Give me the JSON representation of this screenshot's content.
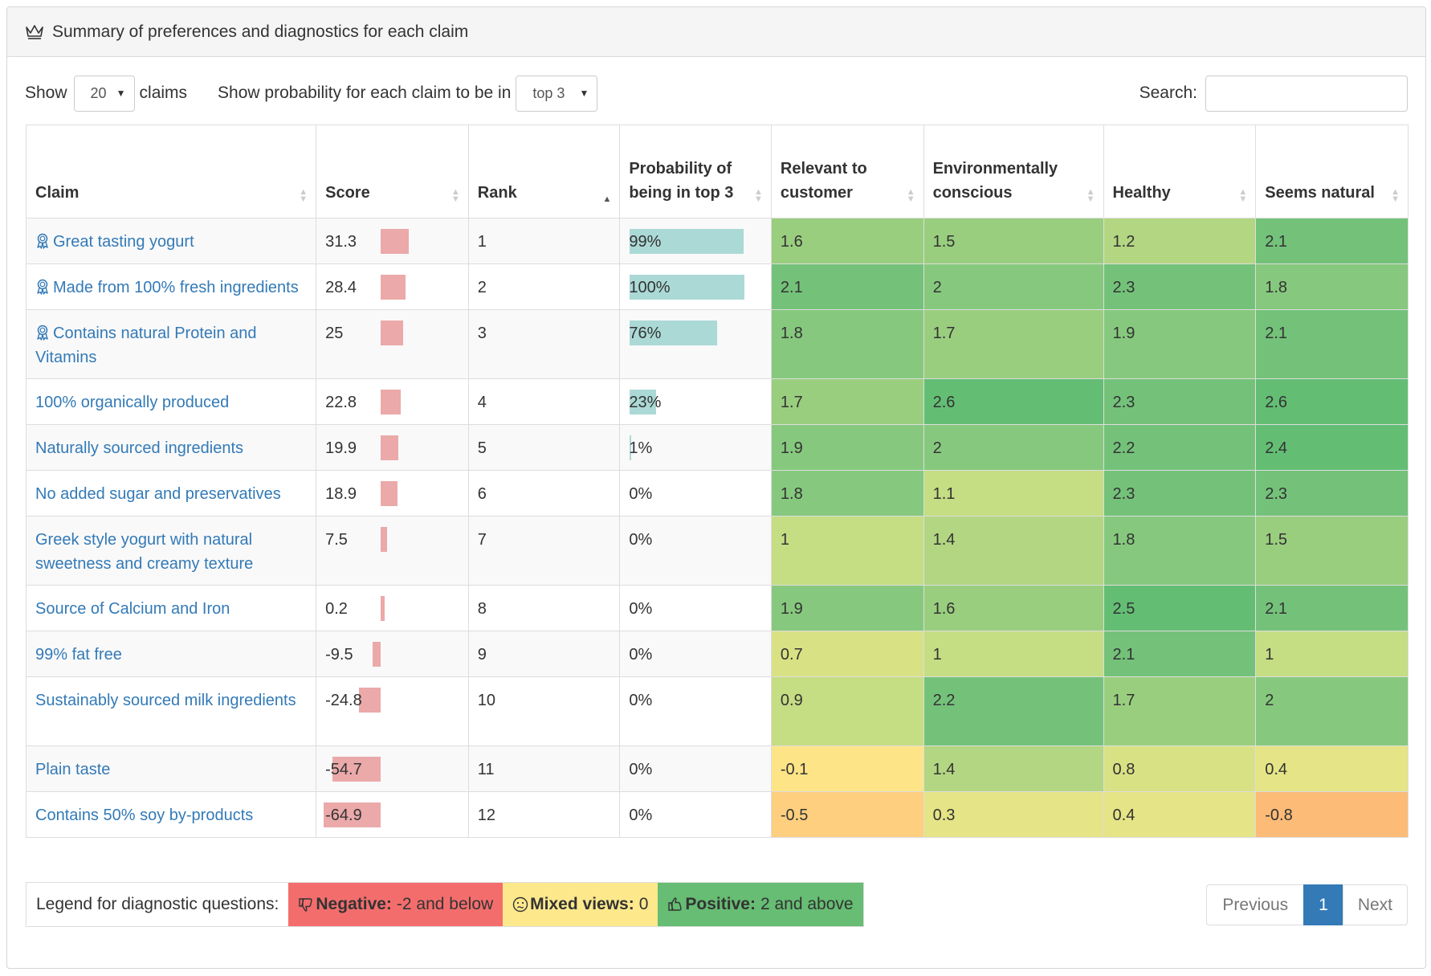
{
  "panel": {
    "title": "Summary of preferences and diagnostics for each claim"
  },
  "controls": {
    "show_label": "Show",
    "show_value": "20",
    "claims_label": "claims",
    "prob_label": "Show probability for each claim to be in",
    "prob_value": "top 3",
    "search_label": "Search:",
    "search_value": ""
  },
  "table": {
    "headers": [
      "Claim",
      "Score",
      "Rank",
      "Probability of being in top 3",
      "Relevant to customer",
      "Environmentally conscious",
      "Healthy",
      "Seems natural"
    ],
    "sorted_column": "Rank",
    "rows": [
      {
        "claim": "Great tasting yogurt",
        "award": true,
        "score": "31.3",
        "score_num": 31.3,
        "rank": "1",
        "prob": "99%",
        "prob_num": 0.99,
        "diag": [
          "1.6",
          "1.5",
          "1.2",
          "2.1"
        ]
      },
      {
        "claim": "Made from 100% fresh ingredients",
        "award": true,
        "score": "28.4",
        "score_num": 28.4,
        "rank": "2",
        "prob": "100%",
        "prob_num": 1.0,
        "diag": [
          "2.1",
          "2",
          "2.3",
          "1.8"
        ]
      },
      {
        "claim": "Contains natural Protein and Vitamins",
        "award": true,
        "score": "25",
        "score_num": 25,
        "rank": "3",
        "prob": "76%",
        "prob_num": 0.76,
        "diag": [
          "1.8",
          "1.7",
          "1.9",
          "2.1"
        ]
      },
      {
        "claim": "100% organically produced",
        "award": false,
        "score": "22.8",
        "score_num": 22.8,
        "rank": "4",
        "prob": "23%",
        "prob_num": 0.23,
        "diag": [
          "1.7",
          "2.6",
          "2.3",
          "2.6"
        ]
      },
      {
        "claim": "Naturally sourced ingredients",
        "award": false,
        "score": "19.9",
        "score_num": 19.9,
        "rank": "5",
        "prob": "1%",
        "prob_num": 0.01,
        "diag": [
          "1.9",
          "2",
          "2.2",
          "2.4"
        ]
      },
      {
        "claim": "No added sugar and preservatives",
        "award": false,
        "score": "18.9",
        "score_num": 18.9,
        "rank": "6",
        "prob": "0%",
        "prob_num": 0,
        "diag": [
          "1.8",
          "1.1",
          "2.3",
          "2.3"
        ]
      },
      {
        "claim": "Greek style yogurt with natural sweetness and creamy texture",
        "award": false,
        "score": "7.5",
        "score_num": 7.5,
        "rank": "7",
        "prob": "0%",
        "prob_num": 0,
        "diag": [
          "1",
          "1.4",
          "1.8",
          "1.5"
        ]
      },
      {
        "claim": "Source of Calcium and Iron",
        "award": false,
        "score": "0.2",
        "score_num": 0.2,
        "rank": "8",
        "prob": "0%",
        "prob_num": 0,
        "diag": [
          "1.9",
          "1.6",
          "2.5",
          "2.1"
        ]
      },
      {
        "claim": "99% fat free",
        "award": false,
        "score": "-9.5",
        "score_num": -9.5,
        "rank": "9",
        "prob": "0%",
        "prob_num": 0,
        "diag": [
          "0.7",
          "1",
          "2.1",
          "1"
        ]
      },
      {
        "claim": "Sustainably sourced milk ingredients",
        "award": false,
        "score": "-24.8",
        "score_num": -24.8,
        "rank": "10",
        "prob": "0%",
        "prob_num": 0,
        "diag": [
          "0.9",
          "2.2",
          "1.7",
          "2"
        ]
      },
      {
        "claim": "Plain taste",
        "award": false,
        "score": "-54.7",
        "score_num": -54.7,
        "rank": "11",
        "prob": "0%",
        "prob_num": 0,
        "diag": [
          "-0.1",
          "1.4",
          "0.8",
          "0.4"
        ]
      },
      {
        "claim": "Contains 50% soy by-products",
        "award": false,
        "score": "-64.9",
        "score_num": -64.9,
        "rank": "12",
        "prob": "0%",
        "prob_num": 0,
        "diag": [
          "-0.5",
          "0.3",
          "0.4",
          "-0.8"
        ]
      }
    ]
  },
  "legend": {
    "label": "Legend for diagnostic questions:",
    "negative_title": "Negative:",
    "negative_text": "-2 and below",
    "mixed_title": "Mixed views:",
    "mixed_text": "0",
    "positive_title": "Positive:",
    "positive_text": "2 and above"
  },
  "pagination": {
    "previous": "Previous",
    "current": "1",
    "next": "Next"
  },
  "colors": {
    "link": "#337ab7",
    "score_bar": "#eba9a9",
    "prob_bar": "#abd9d6",
    "negative": "#f46d6d",
    "mixed": "#fde88c",
    "positive": "#66bd73"
  }
}
